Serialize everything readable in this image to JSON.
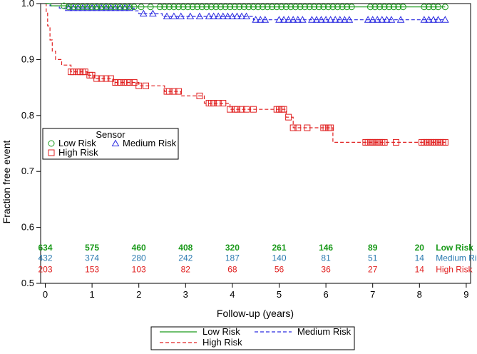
{
  "chart_data": {
    "type": "line",
    "subtype": "kaplan-meier",
    "title": "",
    "xlabel": "Follow-up (years)",
    "ylabel": "Fraction free event",
    "xlim": [
      0,
      9
    ],
    "ylim": [
      0.5,
      1.0
    ],
    "xticks": [
      0,
      1,
      2,
      3,
      4,
      5,
      6,
      7,
      8,
      9
    ],
    "yticks": [
      0.5,
      0.6,
      0.7,
      0.8,
      0.9,
      1.0
    ],
    "xtick_labels": [
      "0",
      "1",
      "2",
      "3",
      "4",
      "5",
      "6",
      "7",
      "8",
      "9"
    ],
    "ytick_labels": [
      "0.5",
      "0.6",
      "0.7",
      "0.8",
      "0.9",
      "1.0"
    ],
    "grid": false,
    "inner_legend": {
      "title": "Sensor",
      "placement": "middle-left",
      "entries": [
        {
          "label": "Low Risk",
          "marker": "circle",
          "color": "#1a9a1a"
        },
        {
          "label": "Medium Risk",
          "marker": "triangle",
          "color": "#2a2ae0"
        },
        {
          "label": "High Risk",
          "marker": "square",
          "color": "#e02020"
        }
      ]
    },
    "bottom_legend": {
      "placement": "bottom-center",
      "entries": [
        {
          "label": "Low Risk",
          "style": "solid",
          "color": "#1a9a1a"
        },
        {
          "label": "Medium Risk",
          "style": "dashed",
          "color": "#2a2ae0"
        },
        {
          "label": "High Risk",
          "style": "dashed",
          "color": "#e02020"
        }
      ]
    },
    "series": [
      {
        "name": "Low Risk",
        "color": "#1a9a1a",
        "line_style": "solid",
        "marker": "circle",
        "steps": [
          [
            0,
            1.0
          ],
          [
            0.12,
            0.996
          ],
          [
            0.5,
            0.994
          ],
          [
            9.0,
            0.994
          ]
        ],
        "end_x": 8.55,
        "censor_x": [
          0.4,
          0.5,
          0.6,
          0.7,
          0.8,
          0.9,
          1.0,
          1.1,
          1.2,
          1.3,
          1.4,
          1.5,
          1.6,
          1.7,
          1.8,
          1.9,
          2.05,
          2.25,
          2.45,
          2.55,
          2.65,
          2.75,
          2.85,
          2.95,
          3.05,
          3.15,
          3.25,
          3.35,
          3.45,
          3.55,
          3.65,
          3.75,
          3.85,
          3.95,
          4.05,
          4.15,
          4.25,
          4.35,
          4.45,
          4.55,
          4.65,
          4.75,
          4.85,
          4.95,
          5.05,
          5.15,
          5.25,
          5.35,
          5.45,
          5.55,
          5.65,
          5.75,
          5.85,
          5.95,
          6.05,
          6.15,
          6.25,
          6.35,
          6.45,
          6.55,
          6.95,
          7.05,
          7.15,
          7.25,
          7.35,
          7.45,
          7.55,
          7.65,
          8.1,
          8.2,
          8.3,
          8.4,
          8.55
        ]
      },
      {
        "name": "Medium Risk",
        "color": "#2a2ae0",
        "line_style": "dashed",
        "marker": "triangle",
        "steps": [
          [
            0,
            1.0
          ],
          [
            0.1,
            0.996
          ],
          [
            0.3,
            0.992
          ],
          [
            1.9,
            0.987
          ],
          [
            2.0,
            0.982
          ],
          [
            2.5,
            0.977
          ],
          [
            4.45,
            0.971
          ],
          [
            9.0,
            0.971
          ]
        ],
        "end_x": 8.55,
        "censor_x": [
          0.5,
          0.6,
          0.7,
          0.8,
          0.9,
          1.0,
          1.1,
          1.2,
          1.3,
          1.4,
          1.5,
          1.6,
          1.7,
          1.8,
          2.1,
          2.3,
          2.6,
          2.75,
          2.9,
          3.1,
          3.3,
          3.5,
          3.6,
          3.7,
          3.8,
          3.9,
          4.0,
          4.1,
          4.2,
          4.3,
          4.5,
          4.6,
          4.7,
          5.0,
          5.1,
          5.2,
          5.3,
          5.4,
          5.5,
          5.7,
          5.8,
          5.9,
          6.0,
          6.1,
          6.2,
          6.3,
          6.4,
          6.5,
          6.9,
          7.0,
          7.1,
          7.2,
          7.3,
          7.4,
          7.6,
          8.1,
          8.2,
          8.3,
          8.4,
          8.55
        ]
      },
      {
        "name": "High Risk",
        "color": "#e02020",
        "line_style": "dashed",
        "marker": "square",
        "steps": [
          [
            0,
            1.0
          ],
          [
            0.02,
            0.985
          ],
          [
            0.05,
            0.96
          ],
          [
            0.1,
            0.935
          ],
          [
            0.15,
            0.915
          ],
          [
            0.22,
            0.9
          ],
          [
            0.35,
            0.89
          ],
          [
            0.55,
            0.878
          ],
          [
            0.9,
            0.872
          ],
          [
            1.05,
            0.866
          ],
          [
            1.45,
            0.859
          ],
          [
            2.0,
            0.853
          ],
          [
            2.55,
            0.843
          ],
          [
            2.9,
            0.835
          ],
          [
            3.1,
            0.835
          ],
          [
            3.4,
            0.822
          ],
          [
            3.95,
            0.811
          ],
          [
            4.6,
            0.811
          ],
          [
            5.15,
            0.797
          ],
          [
            5.3,
            0.778
          ],
          [
            6.15,
            0.752
          ],
          [
            9.0,
            0.752
          ]
        ],
        "end_x": 8.55,
        "censor_x": [
          0.55,
          0.6,
          0.7,
          0.75,
          0.8,
          0.85,
          0.95,
          1.0,
          1.1,
          1.2,
          1.3,
          1.4,
          1.5,
          1.55,
          1.6,
          1.7,
          1.75,
          1.8,
          1.9,
          2.0,
          2.15,
          2.6,
          2.65,
          2.75,
          2.85,
          3.3,
          3.5,
          3.55,
          3.6,
          3.7,
          3.8,
          3.95,
          4.05,
          4.1,
          4.2,
          4.3,
          4.45,
          4.95,
          5.0,
          5.05,
          5.1,
          5.2,
          5.3,
          5.4,
          5.6,
          5.95,
          6.0,
          6.05,
          6.1,
          6.85,
          6.9,
          6.95,
          7.0,
          7.05,
          7.1,
          7.15,
          7.2,
          7.25,
          7.5,
          8.05,
          8.1,
          8.15,
          8.2,
          8.25,
          8.3,
          8.35,
          8.4,
          8.45,
          8.5,
          8.55
        ]
      }
    ],
    "risk_table": {
      "x_positions": [
        0,
        1,
        2,
        3,
        4,
        5,
        6,
        7,
        8
      ],
      "rows": [
        {
          "label": "Low Risk",
          "color": "#1a9a1a",
          "bold": true,
          "y": 0.564,
          "values": [
            "634",
            "575",
            "460",
            "408",
            "320",
            "261",
            "146",
            "89",
            "20"
          ]
        },
        {
          "label": "Medium Risk",
          "color": "#2a7ab0",
          "bold": false,
          "y": 0.545,
          "values": [
            "432",
            "374",
            "280",
            "242",
            "187",
            "140",
            "81",
            "51",
            "14"
          ]
        },
        {
          "label": "High Risk",
          "color": "#e02020",
          "bold": false,
          "y": 0.525,
          "values": [
            "203",
            "153",
            "103",
            "82",
            "68",
            "56",
            "36",
            "27",
            "14"
          ]
        }
      ]
    }
  }
}
